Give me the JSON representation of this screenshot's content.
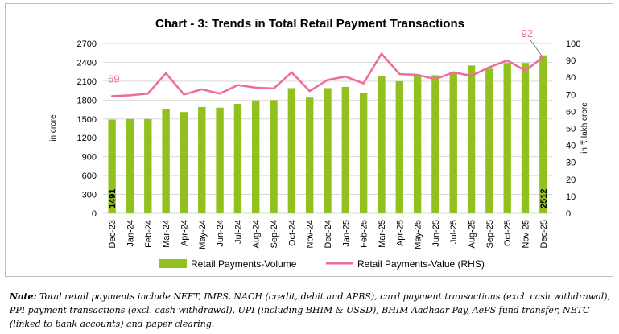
{
  "chart_data": {
    "type": "bar",
    "title": "Chart - 3: Trends in Total Retail Payment Transactions",
    "ylabel": "in crore",
    "y2label": "in ₹ lakh crore",
    "ylim": [
      0,
      2700
    ],
    "y2lim": [
      0,
      100
    ],
    "yticks": [
      "0",
      "300",
      "600",
      "900",
      "1200",
      "1500",
      "1800",
      "2100",
      "2400",
      "2700"
    ],
    "y2ticks": [
      "0",
      "10",
      "20",
      "30",
      "40",
      "50",
      "60",
      "70",
      "80",
      "90",
      "100"
    ],
    "grid": true,
    "legend_position": "bottom",
    "categories": [
      "Dec-23",
      "Jan-24",
      "Feb-24",
      "Mar-24",
      "Apr-24",
      "May-24",
      "Jun-24",
      "Jul-24",
      "Aug-24",
      "Sep-24",
      "Oct-24",
      "Nov-24",
      "Dec-24",
      "Jan-25",
      "Feb-25",
      "Mar-25",
      "Apr-25",
      "May-25",
      "Jun-25",
      "Jul-25",
      "Aug-25",
      "Sep-25",
      "Oct-25",
      "Nov-25",
      "Dec-25"
    ],
    "series": [
      {
        "name": "Retail Payments-Volume",
        "axis": "left",
        "type": "bar",
        "color": "#92c01f",
        "values": [
          1491,
          1500,
          1500,
          1655,
          1610,
          1690,
          1680,
          1740,
          1795,
          1800,
          1990,
          1840,
          1990,
          2010,
          1910,
          2175,
          2100,
          2200,
          2195,
          2240,
          2350,
          2300,
          2390,
          2390,
          2512
        ]
      },
      {
        "name": "Retail Payments-Value (RHS)",
        "axis": "right",
        "type": "line",
        "color": "#f06aa0",
        "values": [
          69,
          69.5,
          70.5,
          82.5,
          70,
          73,
          70.5,
          75.5,
          74,
          73.5,
          83,
          72,
          78.5,
          80.5,
          76.5,
          94,
          82,
          81.5,
          79,
          83,
          81,
          86,
          90,
          84,
          92
        ]
      }
    ],
    "annotations": {
      "first_bar_label": "1491",
      "last_bar_label": "2512",
      "first_line_label": "69",
      "last_line_label": "92"
    }
  },
  "note": {
    "label": "Note:",
    "text": " Total retail payments include NEFT, IMPS, NACH (credit, debit and APBS), card payment transactions (excl. cash withdrawal), PPI payment transactions (excl. cash withdrawal), UPI (including BHIM & USSD), BHIM Aadhaar Pay, AePS fund transfer, NETC (linked to bank accounts) and paper clearing."
  }
}
